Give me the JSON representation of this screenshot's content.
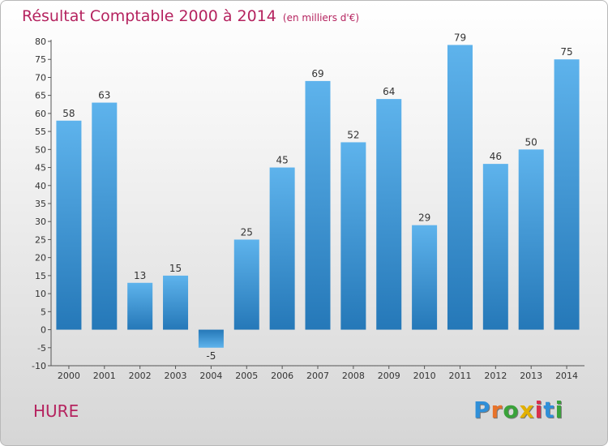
{
  "title": "Résultat Comptable 2000 à 2014",
  "subtitle": "(en milliers d'€)",
  "place": "HURE",
  "logo": {
    "text": "Proxiti",
    "letters": [
      "P",
      "r",
      "o",
      "x",
      "i",
      "t",
      "i"
    ],
    "colors": [
      "#2f8fd8",
      "#e8732a",
      "#3aa23a",
      "#e2b000",
      "#d8304c",
      "#2f8fd8",
      "#3aa23a"
    ]
  },
  "chart_data": {
    "type": "bar",
    "categories": [
      "2000",
      "2001",
      "2002",
      "2003",
      "2004",
      "2005",
      "2006",
      "2007",
      "2008",
      "2009",
      "2010",
      "2011",
      "2012",
      "2013",
      "2014"
    ],
    "values": [
      58,
      63,
      13,
      15,
      -5,
      25,
      45,
      69,
      52,
      64,
      29,
      79,
      46,
      50,
      75
    ],
    "ylim": [
      -10,
      80
    ],
    "yticks": [
      -10,
      -5,
      0,
      5,
      10,
      15,
      20,
      25,
      30,
      35,
      40,
      45,
      50,
      55,
      60,
      65,
      70,
      75,
      80
    ],
    "title": "Résultat Comptable 2000 à 2014",
    "xlabel": "",
    "ylabel": "",
    "grid": false,
    "bar_color": "#3a94d6"
  }
}
